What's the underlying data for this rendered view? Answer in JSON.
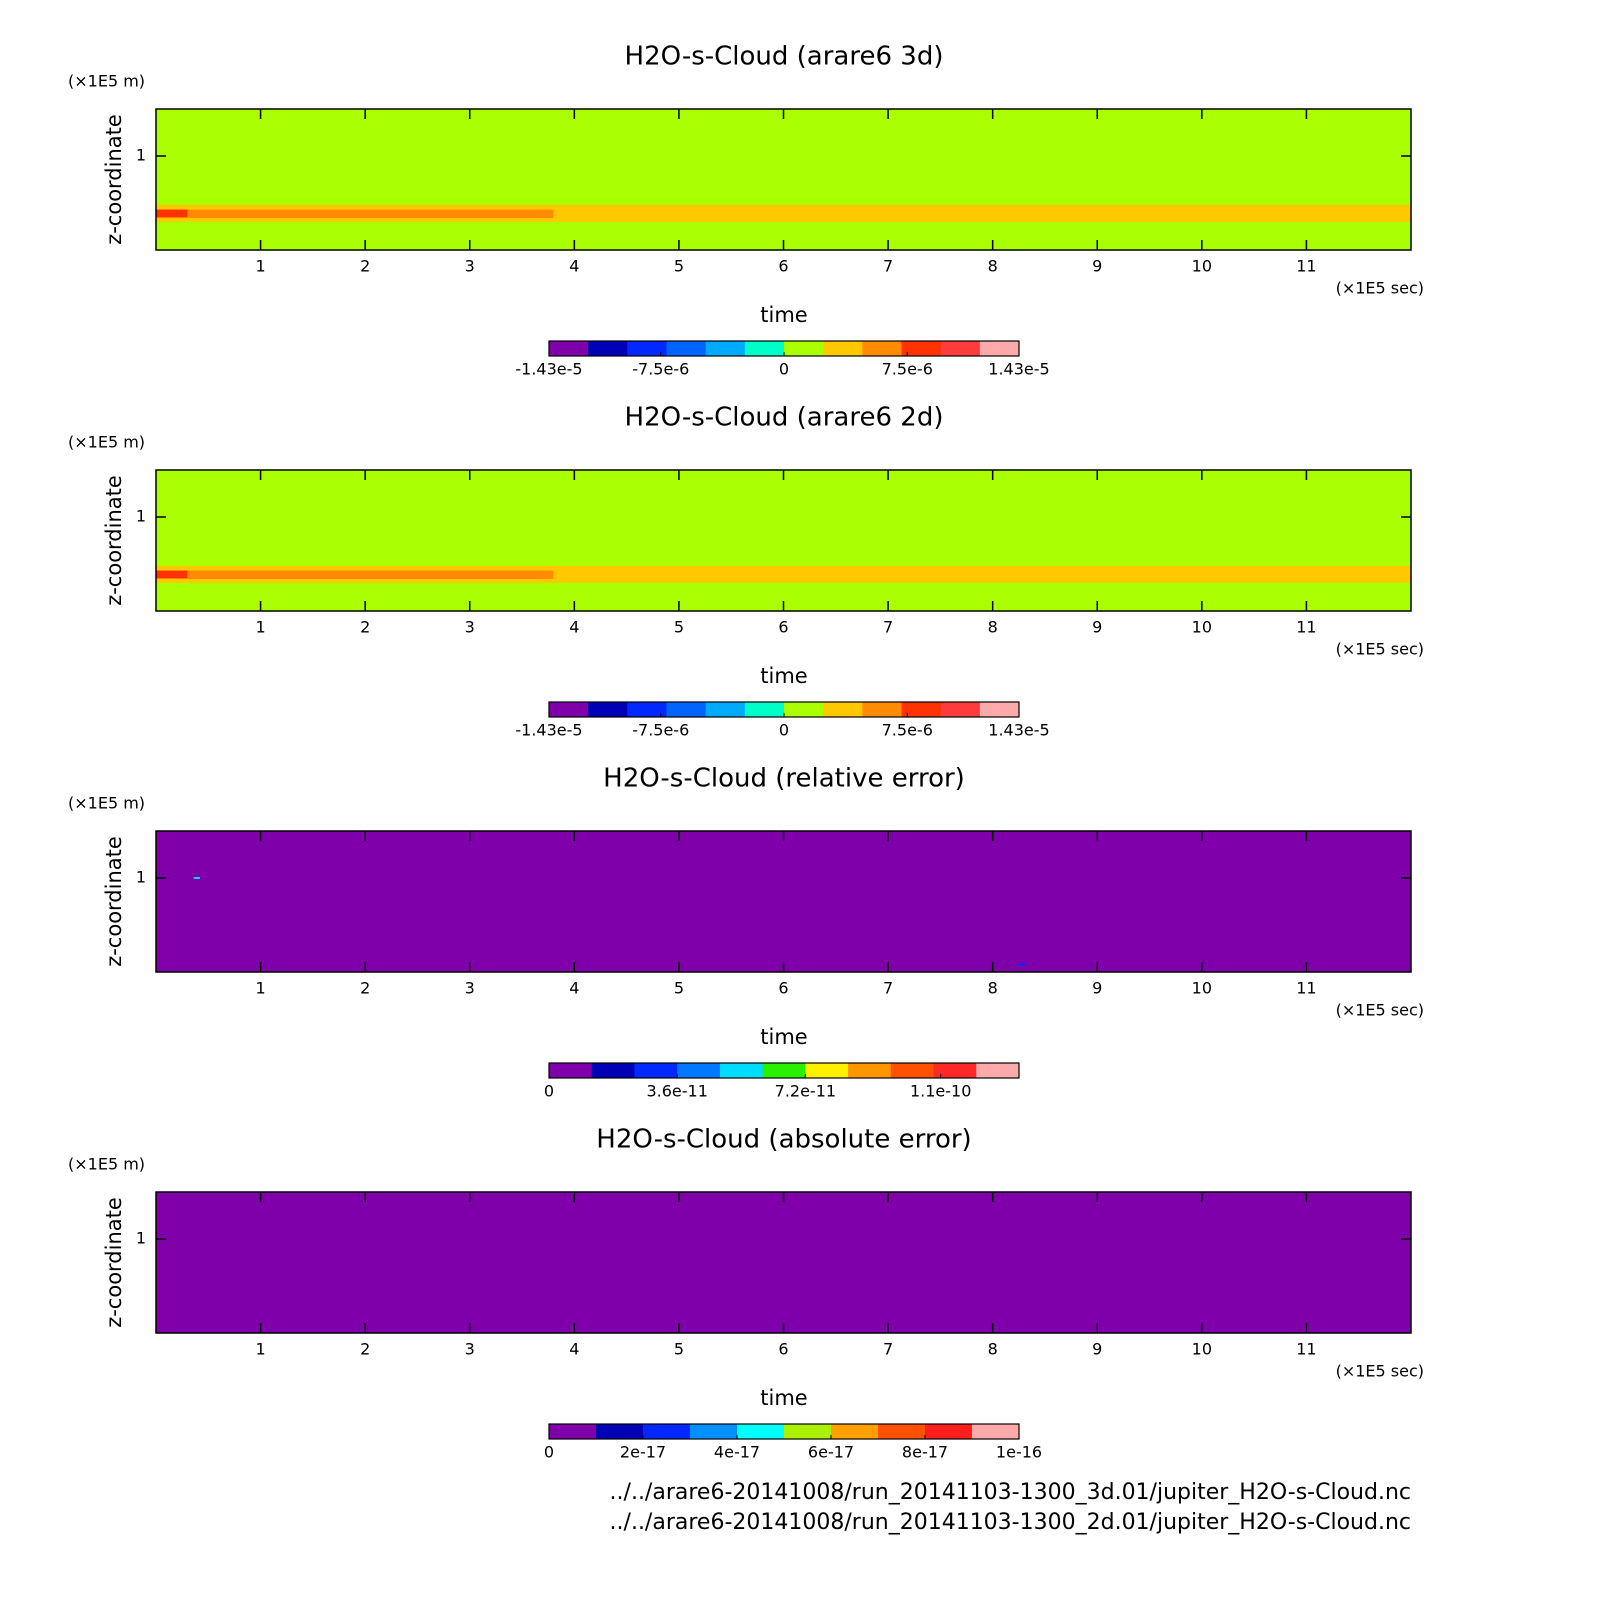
{
  "chart_data": [
    {
      "type": "heatmap",
      "title": "H2O-s-Cloud (arare6 3d)",
      "xlabel": "time",
      "xunit": "(×1E5 sec)",
      "ylabel": "z-coordinate",
      "yunit": "(×1E5 m)",
      "xlim": [
        0,
        12
      ],
      "xticks": [
        1,
        2,
        3,
        4,
        5,
        6,
        7,
        8,
        9,
        10,
        11
      ],
      "ylim": [
        0,
        1.5
      ],
      "yticks": [
        1
      ],
      "regions": [
        {
          "t": [
            0,
            12
          ],
          "z": [
            0,
            1.5
          ],
          "value": 1e-06
        },
        {
          "t": [
            0,
            12
          ],
          "z": [
            0.3,
            0.48
          ],
          "value": 3.5e-06
        },
        {
          "t": [
            0,
            3.8
          ],
          "z": [
            0.34,
            0.43
          ],
          "value": 6e-06
        },
        {
          "t": [
            0,
            0.3
          ],
          "z": [
            0.35,
            0.43
          ],
          "value": 9e-06
        }
      ],
      "colorbar": {
        "clim": [
          -1.43e-05,
          1.43e-05
        ],
        "colors": [
          "#7f00aa",
          "#0000b4",
          "#0028ff",
          "#0064ff",
          "#00aaff",
          "#00ffc8",
          "#aaff00",
          "#ffc800",
          "#ff8c00",
          "#ff3200",
          "#ff3c3c",
          "#ffaaaa"
        ],
        "ticks": [
          {
            "value": -1.43e-05,
            "label": "-1.43e-5"
          },
          {
            "value": -7.5e-06,
            "label": "-7.5e-6"
          },
          0,
          {
            "value": 7.5e-06,
            "label": "7.5e-6"
          },
          {
            "value": 1.43e-05,
            "label": "1.43e-5"
          }
        ]
      }
    },
    {
      "type": "heatmap",
      "title": "H2O-s-Cloud (arare6 2d)",
      "xlabel": "time",
      "xunit": "(×1E5 sec)",
      "ylabel": "z-coordinate",
      "yunit": "(×1E5 m)",
      "xlim": [
        0,
        12
      ],
      "xticks": [
        1,
        2,
        3,
        4,
        5,
        6,
        7,
        8,
        9,
        10,
        11
      ],
      "ylim": [
        0,
        1.5
      ],
      "yticks": [
        1
      ],
      "regions": [
        {
          "t": [
            0,
            12
          ],
          "z": [
            0,
            1.5
          ],
          "value": 1e-06
        },
        {
          "t": [
            0,
            12
          ],
          "z": [
            0.3,
            0.48
          ],
          "value": 3.5e-06
        },
        {
          "t": [
            0,
            3.8
          ],
          "z": [
            0.34,
            0.43
          ],
          "value": 6e-06
        },
        {
          "t": [
            0,
            0.3
          ],
          "z": [
            0.35,
            0.43
          ],
          "value": 9e-06
        }
      ],
      "colorbar": {
        "clim": [
          -1.43e-05,
          1.43e-05
        ],
        "colors": [
          "#7f00aa",
          "#0000b4",
          "#0028ff",
          "#0064ff",
          "#00aaff",
          "#00ffc8",
          "#aaff00",
          "#ffc800",
          "#ff8c00",
          "#ff3200",
          "#ff3c3c",
          "#ffaaaa"
        ],
        "ticks": [
          {
            "value": -1.43e-05,
            "label": "-1.43e-5"
          },
          {
            "value": -7.5e-06,
            "label": "-7.5e-6"
          },
          0,
          {
            "value": 7.5e-06,
            "label": "7.5e-6"
          },
          {
            "value": 1.43e-05,
            "label": "1.43e-5"
          }
        ]
      }
    },
    {
      "type": "heatmap",
      "title": "H2O-s-Cloud (relative error)",
      "xlabel": "time",
      "xunit": "(×1E5 sec)",
      "ylabel": "z-coordinate",
      "yunit": "(×1E5 m)",
      "xlim": [
        0,
        12
      ],
      "xticks": [
        1,
        2,
        3,
        4,
        5,
        6,
        7,
        8,
        9,
        10,
        11
      ],
      "ylim": [
        0,
        1.5
      ],
      "yticks": [
        1
      ],
      "regions": [
        {
          "t": [
            0,
            12
          ],
          "z": [
            0,
            1.5
          ],
          "value": 0
        },
        {
          "t": [
            0.36,
            0.42
          ],
          "z": [
            0.99,
            1.01
          ],
          "value": 5e-11
        },
        {
          "t": [
            8.24,
            8.32
          ],
          "z": [
            0.07,
            0.09
          ],
          "value": 2.5e-11
        }
      ],
      "colorbar": {
        "clim": [
          0,
          1.32e-10
        ],
        "colors": [
          "#7f00aa",
          "#0000b4",
          "#0028ff",
          "#0078ff",
          "#00dcff",
          "#28f000",
          "#fff000",
          "#ff9600",
          "#ff5000",
          "#ff2828",
          "#ffaaaa"
        ],
        "ticks": [
          0,
          {
            "value": 3.6e-11,
            "label": "3.6e-11"
          },
          {
            "value": 7.2e-11,
            "label": "7.2e-11"
          },
          {
            "value": 1.1e-10,
            "label": "1.1e-10"
          }
        ]
      }
    },
    {
      "type": "heatmap",
      "title": "H2O-s-Cloud (absolute error)",
      "xlabel": "time",
      "xunit": "(×1E5 sec)",
      "ylabel": "z-coordinate",
      "yunit": "(×1E5 m)",
      "xlim": [
        0,
        12
      ],
      "xticks": [
        1,
        2,
        3,
        4,
        5,
        6,
        7,
        8,
        9,
        10,
        11
      ],
      "ylim": [
        0,
        1.5
      ],
      "yticks": [
        1
      ],
      "regions": [
        {
          "t": [
            0,
            12
          ],
          "z": [
            0,
            1.5
          ],
          "value": 0
        }
      ],
      "colorbar": {
        "clim": [
          0,
          1e-16
        ],
        "colors": [
          "#7f00aa",
          "#0000b4",
          "#0028ff",
          "#0090ff",
          "#00ffff",
          "#aaf000",
          "#ffa000",
          "#ff5000",
          "#ff1e1e",
          "#ffaaaa"
        ],
        "ticks": [
          0,
          {
            "value": 2e-17,
            "label": "2e-17"
          },
          {
            "value": 4e-17,
            "label": "4e-17"
          },
          {
            "value": 6e-17,
            "label": "6e-17"
          },
          {
            "value": 8e-17,
            "label": "8e-17"
          },
          {
            "value": 1e-16,
            "label": "1e-16"
          }
        ]
      }
    }
  ],
  "footer": [
    "../../arare6-20141008/run_20141103-1300_3d.01/jupiter_H2O-s-Cloud.nc",
    "../../arare6-20141008/run_20141103-1300_2d.01/jupiter_H2O-s-Cloud.nc"
  ]
}
